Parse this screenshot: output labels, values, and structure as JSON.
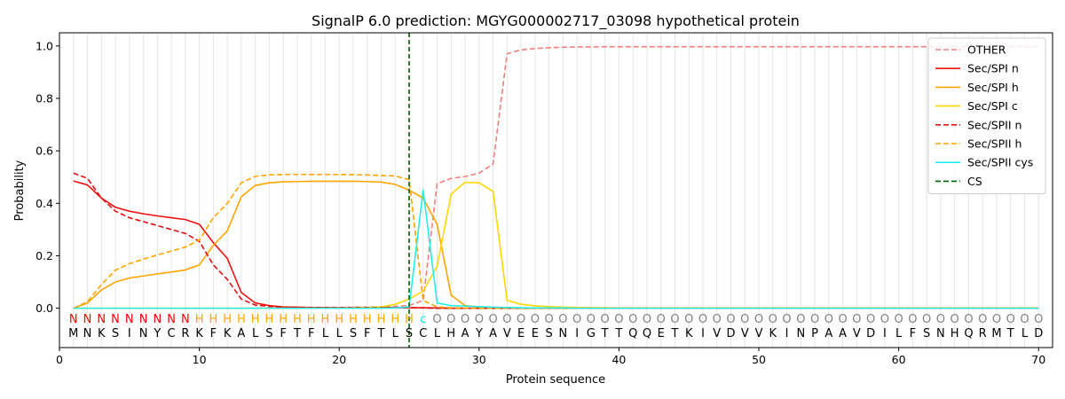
{
  "chart_data": {
    "type": "line",
    "title": "SignalP 6.0 prediction: MGYG000002717_03098 hypothetical protein",
    "xlabel": "Protein sequence",
    "ylabel": "Probability",
    "xlim": [
      0,
      71
    ],
    "ylim": [
      -0.15,
      1.05
    ],
    "xticks": [
      0,
      10,
      20,
      30,
      40,
      50,
      60,
      70
    ],
    "yticks": [
      0.0,
      0.2,
      0.4,
      0.6,
      0.8,
      1.0
    ],
    "vertical_grid": "every position 1-70",
    "legend_position": "upper right",
    "sequence": [
      "M",
      "N",
      "K",
      "S",
      "I",
      "N",
      "Y",
      "C",
      "R",
      "K",
      "F",
      "K",
      "A",
      "L",
      "S",
      "F",
      "T",
      "F",
      "L",
      "L",
      "S",
      "F",
      "T",
      "L",
      "S",
      "C",
      "L",
      "H",
      "A",
      "Y",
      "A",
      "V",
      "E",
      "E",
      "S",
      "N",
      "I",
      "G",
      "T",
      "T",
      "Q",
      "Q",
      "E",
      "T",
      "K",
      "I",
      "V",
      "D",
      "V",
      "V",
      "K",
      "I",
      "N",
      "P",
      "A",
      "A",
      "V",
      "D",
      "I",
      "L",
      "F",
      "S",
      "N",
      "H",
      "Q",
      "R",
      "M",
      "T",
      "L",
      "D"
    ],
    "labels": [
      "N",
      "N",
      "N",
      "N",
      "N",
      "N",
      "N",
      "N",
      "N",
      "H",
      "H",
      "H",
      "H",
      "H",
      "H",
      "H",
      "H",
      "H",
      "H",
      "H",
      "H",
      "H",
      "H",
      "H",
      "H",
      "c",
      "O",
      "O",
      "O",
      "O",
      "O",
      "O",
      "O",
      "O",
      "O",
      "O",
      "O",
      "O",
      "O",
      "O",
      "O",
      "O",
      "O",
      "O",
      "O",
      "O",
      "O",
      "O",
      "O",
      "O",
      "O",
      "O",
      "O",
      "O",
      "O",
      "O",
      "O",
      "O",
      "O",
      "O",
      "O",
      "O",
      "O",
      "O",
      "O",
      "O",
      "O",
      "O",
      "O",
      "O"
    ],
    "label_colors": {
      "N": "#ff0000",
      "H": "#ffa500",
      "c": "#00e5e5",
      "O": "#808080"
    },
    "cs_position": 25,
    "series": [
      {
        "name": "OTHER",
        "color": "#f08080",
        "dash": true,
        "values": [
          0.0,
          0.0,
          0.0,
          0.0,
          0.0,
          0.0,
          0.0,
          0.0,
          0.0,
          0.0,
          0.0,
          0.0,
          0.0,
          0.0,
          0.001,
          0.002,
          0.002,
          0.002,
          0.003,
          0.003,
          0.004,
          0.004,
          0.005,
          0.007,
          0.01,
          0.03,
          0.475,
          0.495,
          0.502,
          0.515,
          0.55,
          0.97,
          0.985,
          0.99,
          0.993,
          0.995,
          0.996,
          0.996,
          0.997,
          0.997,
          0.997,
          0.997,
          0.997,
          0.997,
          0.997,
          0.997,
          0.997,
          0.997,
          0.997,
          0.997,
          0.997,
          0.997,
          0.997,
          0.997,
          0.997,
          0.997,
          0.997,
          0.997,
          0.997,
          0.997,
          0.997,
          0.997,
          0.997,
          0.997,
          0.997,
          0.997,
          0.997,
          0.997,
          0.997,
          0.997
        ]
      },
      {
        "name": "Sec/SPI n",
        "color": "#ee1111",
        "dash": false,
        "values": [
          0.485,
          0.47,
          0.42,
          0.385,
          0.37,
          0.36,
          0.352,
          0.345,
          0.338,
          0.32,
          0.25,
          0.19,
          0.06,
          0.02,
          0.01,
          0.005,
          0.004,
          0.003,
          0.003,
          0.002,
          0.002,
          0.002,
          0.002,
          0.002,
          0.002,
          0.002,
          0.001,
          0.0,
          0.0,
          0.0,
          0.0,
          0.0,
          0.0,
          0.0,
          0.0,
          0.0,
          0.0,
          0.0,
          0.0,
          0.0,
          0.0,
          0.0,
          0.0,
          0.0,
          0.0,
          0.0,
          0.0,
          0.0,
          0.0,
          0.0,
          0.0,
          0.0,
          0.0,
          0.0,
          0.0,
          0.0,
          0.0,
          0.0,
          0.0,
          0.0,
          0.0,
          0.0,
          0.0,
          0.0,
          0.0,
          0.0,
          0.0,
          0.0,
          0.0,
          0.0
        ]
      },
      {
        "name": "Sec/SPI h",
        "color": "#ffa500",
        "dash": false,
        "values": [
          0.0,
          0.02,
          0.07,
          0.1,
          0.115,
          0.123,
          0.131,
          0.138,
          0.146,
          0.165,
          0.24,
          0.295,
          0.425,
          0.468,
          0.478,
          0.482,
          0.483,
          0.484,
          0.484,
          0.484,
          0.484,
          0.483,
          0.481,
          0.472,
          0.45,
          0.42,
          0.32,
          0.05,
          0.01,
          0.005,
          0.003,
          0.002,
          0.001,
          0.0,
          0.0,
          0.0,
          0.0,
          0.0,
          0.0,
          0.0,
          0.0,
          0.0,
          0.0,
          0.0,
          0.0,
          0.0,
          0.0,
          0.0,
          0.0,
          0.0,
          0.0,
          0.0,
          0.0,
          0.0,
          0.0,
          0.0,
          0.0,
          0.0,
          0.0,
          0.0,
          0.0,
          0.0,
          0.0,
          0.0,
          0.0,
          0.0,
          0.0,
          0.0,
          0.0,
          0.0
        ]
      },
      {
        "name": "Sec/SPI c",
        "color": "#ffd700",
        "dash": false,
        "values": [
          0.0,
          0.0,
          0.0,
          0.0,
          0.0,
          0.0,
          0.0,
          0.0,
          0.0,
          0.0,
          0.0,
          0.0,
          0.0,
          0.0,
          0.0,
          0.0,
          0.0,
          0.001,
          0.001,
          0.001,
          0.002,
          0.003,
          0.005,
          0.015,
          0.035,
          0.065,
          0.16,
          0.435,
          0.48,
          0.478,
          0.445,
          0.03,
          0.015,
          0.009,
          0.006,
          0.004,
          0.003,
          0.002,
          0.002,
          0.001,
          0.001,
          0.001,
          0.001,
          0.001,
          0.001,
          0.001,
          0.001,
          0.001,
          0.001,
          0.001,
          0.001,
          0.001,
          0.001,
          0.001,
          0.001,
          0.001,
          0.001,
          0.001,
          0.001,
          0.001,
          0.001,
          0.001,
          0.001,
          0.001,
          0.001,
          0.001,
          0.001,
          0.001,
          0.001,
          0.001
        ]
      },
      {
        "name": "Sec/SPII n",
        "color": "#dd1111",
        "dash": true,
        "values": [
          0.515,
          0.495,
          0.42,
          0.37,
          0.345,
          0.33,
          0.315,
          0.3,
          0.285,
          0.255,
          0.165,
          0.11,
          0.035,
          0.012,
          0.007,
          0.004,
          0.003,
          0.003,
          0.002,
          0.002,
          0.002,
          0.002,
          0.002,
          0.002,
          0.002,
          0.001,
          0.0,
          0.0,
          0.0,
          0.0,
          0.0,
          0.0,
          0.0,
          0.0,
          0.0,
          0.0,
          0.0,
          0.0,
          0.0,
          0.0,
          0.0,
          0.0,
          0.0,
          0.0,
          0.0,
          0.0,
          0.0,
          0.0,
          0.0,
          0.0,
          0.0,
          0.0,
          0.0,
          0.0,
          0.0,
          0.0,
          0.0,
          0.0,
          0.0,
          0.0,
          0.0,
          0.0,
          0.0,
          0.0,
          0.0,
          0.0,
          0.0,
          0.0,
          0.0,
          0.0
        ]
      },
      {
        "name": "Sec/SPII h",
        "color": "#ffa500",
        "dash": true,
        "values": [
          0.0,
          0.025,
          0.09,
          0.145,
          0.17,
          0.187,
          0.203,
          0.218,
          0.233,
          0.26,
          0.345,
          0.4,
          0.478,
          0.503,
          0.508,
          0.51,
          0.51,
          0.51,
          0.51,
          0.51,
          0.509,
          0.508,
          0.506,
          0.504,
          0.49,
          0.03,
          0.005,
          0.002,
          0.001,
          0.0,
          0.0,
          0.0,
          0.0,
          0.0,
          0.0,
          0.0,
          0.0,
          0.0,
          0.0,
          0.0,
          0.0,
          0.0,
          0.0,
          0.0,
          0.0,
          0.0,
          0.0,
          0.0,
          0.0,
          0.0,
          0.0,
          0.0,
          0.0,
          0.0,
          0.0,
          0.0,
          0.0,
          0.0,
          0.0,
          0.0,
          0.0,
          0.0,
          0.0,
          0.0,
          0.0,
          0.0,
          0.0,
          0.0,
          0.0,
          0.0
        ]
      },
      {
        "name": "Sec/SPII cys",
        "color": "#22eeee",
        "dash": false,
        "values": [
          0.0,
          0.0,
          0.0,
          0.0,
          0.0,
          0.0,
          0.0,
          0.0,
          0.0,
          0.0,
          0.0,
          0.0,
          0.0,
          0.0,
          0.0,
          0.0,
          0.0,
          0.0,
          0.0,
          0.0,
          0.0,
          0.0,
          0.0,
          0.001,
          0.005,
          0.45,
          0.02,
          0.01,
          0.008,
          0.006,
          0.004,
          0.003,
          0.002,
          0.001,
          0.001,
          0.001,
          0.0,
          0.0,
          0.0,
          0.0,
          0.0,
          0.0,
          0.0,
          0.0,
          0.0,
          0.0,
          0.0,
          0.0,
          0.0,
          0.0,
          0.0,
          0.0,
          0.0,
          0.0,
          0.0,
          0.0,
          0.0,
          0.0,
          0.0,
          0.0,
          0.0,
          0.0,
          0.0,
          0.0,
          0.0,
          0.0,
          0.0,
          0.0,
          0.0,
          0.0
        ]
      }
    ],
    "cs_legend": {
      "name": "CS",
      "color": "#006400"
    }
  }
}
